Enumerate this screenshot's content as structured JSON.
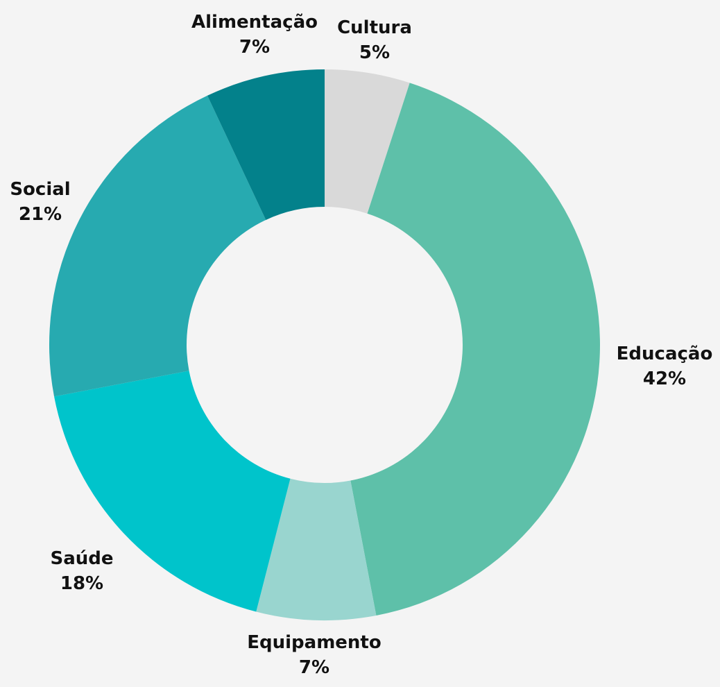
{
  "chart_data": {
    "type": "pie",
    "variant": "donut",
    "categories": [
      "Cultura",
      "Educação",
      "Equipamento",
      "Saúde",
      "Social",
      "Alimentação"
    ],
    "values": [
      5,
      42,
      7,
      18,
      21,
      7
    ],
    "labels": [
      "5%",
      "42%",
      "7%",
      "18%",
      "21%",
      "7%"
    ],
    "colors": [
      "#d9d9d9",
      "#5ec0a9",
      "#99d5cf",
      "#00c4cb",
      "#27aab0",
      "#03818b"
    ],
    "background": "#f4f4f4",
    "legend": "none",
    "start_angle": "12 o'clock",
    "direction": "clockwise"
  }
}
